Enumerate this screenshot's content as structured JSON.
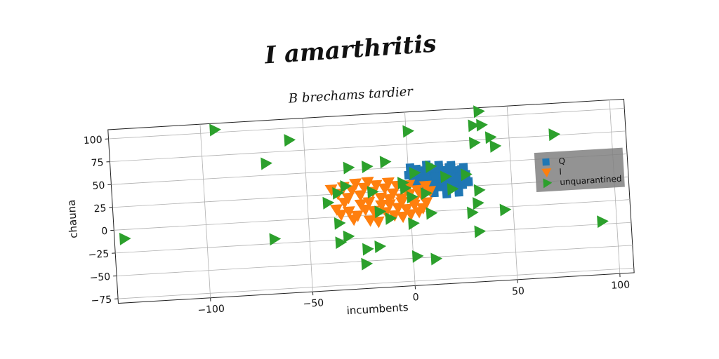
{
  "chart_data": {
    "type": "scatter",
    "title": "I amarthritis",
    "subtitle": "B brechams tardier",
    "xlabel": "incumbents",
    "ylabel": "chauna",
    "xlim": [
      -145,
      107
    ],
    "ylim": [
      -80,
      110
    ],
    "xticks": [
      -100,
      -50,
      0,
      50,
      100
    ],
    "xtick_labels": [
      "−100",
      "−50",
      "0",
      "50",
      "100"
    ],
    "yticks": [
      -75,
      -50,
      -25,
      0,
      25,
      50,
      75,
      100
    ],
    "ytick_labels": [
      "−75",
      "−50",
      "−25",
      "0",
      "25",
      "50",
      "75",
      "100"
    ],
    "grid": true,
    "legend_position": "right",
    "series": [
      {
        "name": "Q",
        "marker": "square",
        "color": "#1f77b4",
        "points": [
          [
            2,
            44
          ],
          [
            4,
            47
          ],
          [
            6,
            42
          ],
          [
            8,
            45
          ],
          [
            10,
            48
          ],
          [
            12,
            43
          ],
          [
            14,
            46
          ],
          [
            16,
            41
          ],
          [
            18,
            44
          ],
          [
            20,
            47
          ],
          [
            22,
            43
          ],
          [
            24,
            40
          ],
          [
            26,
            44
          ],
          [
            3,
            38
          ],
          [
            5,
            35
          ],
          [
            7,
            39
          ],
          [
            9,
            36
          ],
          [
            11,
            33
          ],
          [
            13,
            38
          ],
          [
            15,
            35
          ],
          [
            17,
            32
          ],
          [
            19,
            37
          ],
          [
            21,
            34
          ],
          [
            23,
            31
          ],
          [
            25,
            36
          ],
          [
            27,
            33
          ],
          [
            4,
            30
          ],
          [
            6,
            27
          ],
          [
            8,
            31
          ],
          [
            10,
            28
          ],
          [
            12,
            25
          ],
          [
            14,
            29
          ],
          [
            16,
            26
          ],
          [
            18,
            23
          ],
          [
            20,
            28
          ],
          [
            22,
            25
          ],
          [
            24,
            22
          ],
          [
            26,
            27
          ],
          [
            1,
            49
          ],
          [
            9,
            51
          ],
          [
            15,
            50
          ],
          [
            21,
            49
          ],
          [
            27,
            46
          ],
          [
            0,
            41
          ],
          [
            28,
            38
          ],
          [
            29,
            30
          ],
          [
            2,
            33
          ],
          [
            6,
            21
          ],
          [
            12,
            20
          ],
          [
            18,
            18
          ],
          [
            24,
            19
          ]
        ]
      },
      {
        "name": "I",
        "marker": "triangle_down",
        "color": "#ff7f0e",
        "points": [
          [
            -38,
            30
          ],
          [
            -35,
            25
          ],
          [
            -32,
            32
          ],
          [
            -30,
            20
          ],
          [
            -28,
            28
          ],
          [
            -26,
            35
          ],
          [
            -24,
            22
          ],
          [
            -22,
            30
          ],
          [
            -20,
            36
          ],
          [
            -18,
            25
          ],
          [
            -16,
            32
          ],
          [
            -14,
            18
          ],
          [
            -12,
            28
          ],
          [
            -10,
            34
          ],
          [
            -8,
            22
          ],
          [
            -6,
            30
          ],
          [
            -4,
            16
          ],
          [
            -2,
            26
          ],
          [
            0,
            20
          ],
          [
            2,
            12
          ],
          [
            4,
            24
          ],
          [
            6,
            18
          ],
          [
            8,
            10
          ],
          [
            10,
            22
          ],
          [
            -36,
            8
          ],
          [
            -34,
            2
          ],
          [
            -30,
            5
          ],
          [
            -28,
            -4
          ],
          [
            -26,
            0
          ],
          [
            -22,
            6
          ],
          [
            -20,
            -6
          ],
          [
            -18,
            4
          ],
          [
            -16,
            -8
          ],
          [
            -12,
            2
          ],
          [
            -10,
            10
          ],
          [
            -8,
            -2
          ],
          [
            -6,
            6
          ],
          [
            -4,
            -4
          ],
          [
            -2,
            4
          ],
          [
            0,
            -2
          ],
          [
            2,
            8
          ],
          [
            4,
            0
          ],
          [
            -24,
            12
          ],
          [
            -14,
            10
          ],
          [
            -4,
            12
          ],
          [
            6,
            4
          ],
          [
            -32,
            15
          ],
          [
            -20,
            14
          ],
          [
            -10,
            16
          ],
          [
            0,
            30
          ],
          [
            8,
            28
          ]
        ]
      },
      {
        "name": "unquarantined",
        "marker": "triangle_right",
        "color": "#2ca02c",
        "points": [
          [
            -140,
            -10
          ],
          [
            -93,
            103
          ],
          [
            -57,
            87
          ],
          [
            -69,
            63
          ],
          [
            -67,
            -20
          ],
          [
            -35,
            -7
          ],
          [
            -35,
            -28
          ],
          [
            -31,
            -22
          ],
          [
            -40,
            16
          ],
          [
            -35,
            26
          ],
          [
            -31,
            33
          ],
          [
            -29,
            53
          ],
          [
            -20,
            53
          ],
          [
            -22,
            -37
          ],
          [
            -16,
            -35
          ],
          [
            -23,
            -53
          ],
          [
            -15,
            3
          ],
          [
            -18,
            25
          ],
          [
            -11,
            57
          ],
          [
            -10,
            -5
          ],
          [
            -3,
            33
          ],
          [
            -2,
            27
          ],
          [
            1,
            17
          ],
          [
            1,
            89
          ],
          [
            1,
            -12
          ],
          [
            2,
            -48
          ],
          [
            11,
            -52
          ],
          [
            10,
            -2
          ],
          [
            8,
            20
          ],
          [
            11,
            49
          ],
          [
            3,
            43
          ],
          [
            18,
            37
          ],
          [
            21,
            23
          ],
          [
            28,
            38
          ],
          [
            30,
            -4
          ],
          [
            36,
            106
          ],
          [
            33,
            91
          ],
          [
            33,
            72
          ],
          [
            37,
            91
          ],
          [
            34,
            20
          ],
          [
            33,
            6
          ],
          [
            33,
            -25
          ],
          [
            41,
            77
          ],
          [
            43,
            67
          ],
          [
            46,
            -3
          ],
          [
            72,
            76
          ],
          [
            93,
            -22
          ]
        ]
      }
    ]
  }
}
